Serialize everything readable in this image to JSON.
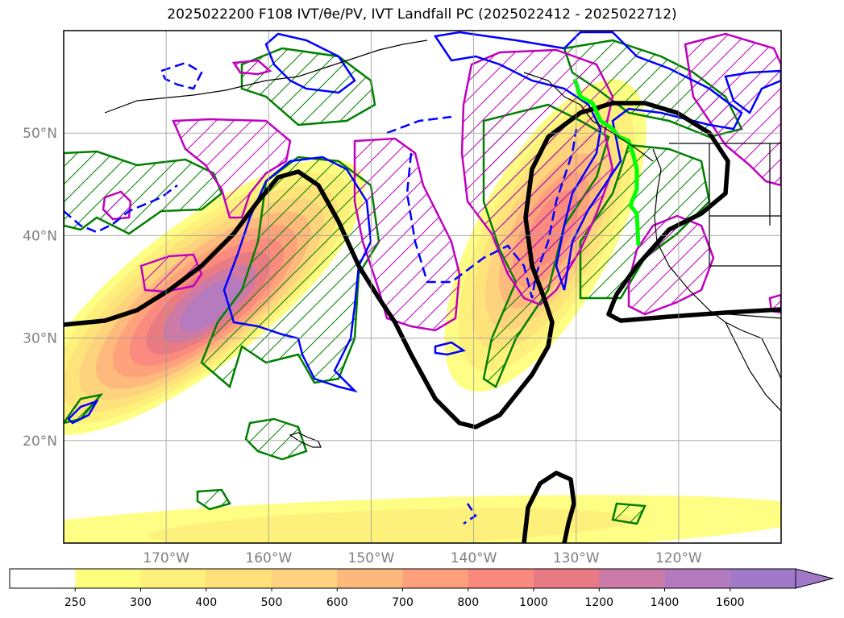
{
  "title": "2025022200 F108 IVT/θe/PV, IVT Landfall PC (2025022412 - 2025022712)",
  "chart_data": {
    "type": "heatmap",
    "title": "2025022200 F108 IVT/θe/PV, IVT Landfall PC (2025022412 - 2025022712)",
    "projection": "equirectangular",
    "lon_range": [
      -180,
      -110
    ],
    "lat_range": [
      10,
      60
    ],
    "grid": true,
    "lat_ticks": [
      {
        "value": 20,
        "label": "20°N"
      },
      {
        "value": 30,
        "label": "30°N"
      },
      {
        "value": 40,
        "label": "40°N"
      },
      {
        "value": 50,
        "label": "50°N"
      }
    ],
    "lon_ticks": [
      {
        "value": -170,
        "label": "170°W"
      },
      {
        "value": -160,
        "label": "160°W"
      },
      {
        "value": -150,
        "label": "150°W"
      },
      {
        "value": -140,
        "label": "140°W"
      },
      {
        "value": -130,
        "label": "130°W"
      },
      {
        "value": -120,
        "label": "120°W"
      }
    ],
    "colorbar": {
      "orientation": "horizontal",
      "extend": "max",
      "levels": [
        250,
        300,
        400,
        500,
        600,
        700,
        800,
        1000,
        1200,
        1400,
        1600
      ],
      "labels": [
        "250",
        "300",
        "400",
        "500",
        "600",
        "700",
        "800",
        "1000",
        "1200",
        "1400",
        "1600"
      ],
      "colors": [
        "#ffffff",
        "#fefe7e",
        "#fef07a",
        "#fee07a",
        "#fed27e",
        "#feb87c",
        "#fea07c",
        "#fb8a7e",
        "#e87a84",
        "#cc7aa8",
        "#b47ac0",
        "#a07ac8"
      ]
    },
    "ivt_features": [
      {
        "name": "west-pacific AR",
        "levels": [
          250,
          300,
          400,
          500,
          600,
          700,
          800,
          1000,
          1200,
          1400
        ],
        "peak_lat": 34,
        "peak_lon": -167
      },
      {
        "name": "northeast-pacific AR",
        "levels": [
          250,
          300,
          400,
          500,
          600,
          700,
          800
        ],
        "peak_lat": 42,
        "peak_lon": -131
      },
      {
        "name": "tropical band",
        "levels": [
          250,
          300
        ],
        "peak_lat": 13,
        "peak_lon": -145
      }
    ],
    "overlay_colors": {
      "theta_e": "#000000",
      "pv_magenta": "#c000c0",
      "pv_green": "#008000",
      "blue": "#0000ff",
      "landfall": "#00ff00"
    }
  }
}
